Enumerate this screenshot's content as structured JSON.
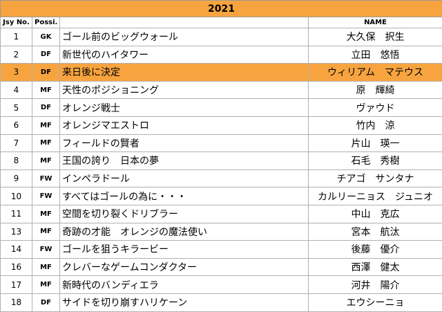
{
  "year": "2021",
  "headers": {
    "no": "Jsy No.",
    "pos": "Possi.",
    "title": "",
    "name": "NAME"
  },
  "highlight_color": "#f7a440",
  "rows": [
    {
      "no": "1",
      "pos": "GK",
      "title": "ゴール前のビッグウォール",
      "name": "大久保　択生",
      "highlight": false
    },
    {
      "no": "2",
      "pos": "DF",
      "title": "新世代のハイタワー",
      "name": "立田　悠悟",
      "highlight": false
    },
    {
      "no": "3",
      "pos": "DF",
      "title": "来日後に決定",
      "name": "ウィリアム　マテウス",
      "highlight": true
    },
    {
      "no": "4",
      "pos": "MF",
      "title": "天性のポジショニング",
      "name": "原　輝綺",
      "highlight": false
    },
    {
      "no": "5",
      "pos": "DF",
      "title": "オレンジ戦士",
      "name": "ヴァウド",
      "highlight": false
    },
    {
      "no": "6",
      "pos": "MF",
      "title": "オレンジマエストロ",
      "name": "竹内　涼",
      "highlight": false
    },
    {
      "no": "7",
      "pos": "MF",
      "title": "フィールドの賢者",
      "name": "片山　瑛一",
      "highlight": false
    },
    {
      "no": "8",
      "pos": "MF",
      "title": "王国の誇り　日本の夢",
      "name": "石毛　秀樹",
      "highlight": false
    },
    {
      "no": "9",
      "pos": "FW",
      "title": "インペラドール",
      "name": "チアゴ　サンタナ",
      "highlight": false
    },
    {
      "no": "10",
      "pos": "FW",
      "title": "すべてはゴールの為に・・・",
      "name": "カルリーニョス　ジュニオ",
      "highlight": false
    },
    {
      "no": "11",
      "pos": "MF",
      "title": "空間を切り裂くドリブラー",
      "name": "中山　克広",
      "highlight": false
    },
    {
      "no": "13",
      "pos": "MF",
      "title": "奇跡の才能　オレンジの魔法使い",
      "name": "宮本　航汰",
      "highlight": false
    },
    {
      "no": "14",
      "pos": "FW",
      "title": "ゴールを狙うキラービー",
      "name": "後藤　優介",
      "highlight": false
    },
    {
      "no": "16",
      "pos": "MF",
      "title": "クレバーなゲームコンダクター",
      "name": "西澤　健太",
      "highlight": false
    },
    {
      "no": "17",
      "pos": "MF",
      "title": "新時代のバンディエラ",
      "name": "河井　陽介",
      "highlight": false
    },
    {
      "no": "18",
      "pos": "DF",
      "title": "サイドを切り崩すハリケーン",
      "name": "エウシーニョ",
      "highlight": false
    }
  ]
}
